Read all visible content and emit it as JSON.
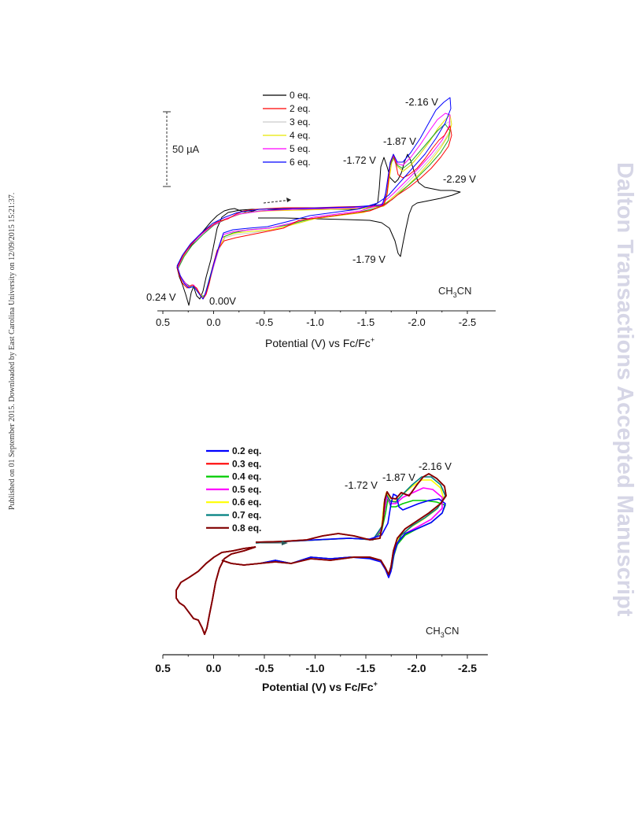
{
  "margin_left_text": "Published on 01 September 2015. Downloaded by East Carolina University on 12/09/2015 15:21:37.",
  "margin_right_text": "Dalton Transactions Accepted Manuscript",
  "chart_data": [
    {
      "type": "line",
      "xlabel": "Potential (V) vs Fc/Fc",
      "xlabel_sup": "+",
      "xlim": [
        0.5,
        -2.75
      ],
      "xticks": [
        0.5,
        0.0,
        -0.5,
        -1.0,
        -1.5,
        -2.0,
        -2.5
      ],
      "xtick_labels": [
        "0.5",
        "0.0",
        "-0.5",
        "-1.0",
        "-1.5",
        "-2.0",
        "-2.5"
      ],
      "scale_bar": "50 µA",
      "solvent": "CH",
      "solvent_sub": "3",
      "solvent_end": "CN",
      "legend_position": "top-center",
      "series": [
        {
          "name": "0 eq.",
          "color": "#000000"
        },
        {
          "name": "2 eq.",
          "color": "#ff0000"
        },
        {
          "name": "3 eq.",
          "color": "#c9c9c9"
        },
        {
          "name": "4 eq.",
          "color": "#e6e600"
        },
        {
          "name": "5 eq.",
          "color": "#ff00ff"
        },
        {
          "name": "6 eq.",
          "color": "#0000ff"
        }
      ],
      "annotations": [
        "-2.16 V",
        "-1.87 V",
        "-1.72 V",
        "-2.29 V",
        "-1.79 V",
        "0.24 V",
        "0.00V"
      ],
      "peak_potentials": [
        -2.16,
        -1.87,
        -1.72,
        -2.29,
        -1.79,
        0.24,
        0.0
      ]
    },
    {
      "type": "line",
      "xlabel": "Potential (V) vs Fc/Fc",
      "xlabel_sup": "+",
      "xlim": [
        0.5,
        -2.75
      ],
      "xticks": [
        0.5,
        0.0,
        -0.5,
        -1.0,
        -1.5,
        -2.0,
        -2.5
      ],
      "xtick_labels": [
        "0.5",
        "0.0",
        "-0.5",
        "-1.0",
        "-1.5",
        "-2.0",
        "-2.5"
      ],
      "solvent": "CH",
      "solvent_sub": "3",
      "solvent_end": "CN",
      "legend_position": "top-left",
      "series": [
        {
          "name": "0.2 eq.",
          "color": "#0000ff"
        },
        {
          "name": "0.3 eq.",
          "color": "#ff0000"
        },
        {
          "name": "0.4 eq.",
          "color": "#00cc00"
        },
        {
          "name": "0.5 eq.",
          "color": "#ff00ff"
        },
        {
          "name": "0.6 eq.",
          "color": "#ffff00"
        },
        {
          "name": "0.7 eq.",
          "color": "#008080"
        },
        {
          "name": "0.8 eq.",
          "color": "#800000"
        }
      ],
      "annotations": [
        "-1.72 V",
        "-1.87 V",
        "-2.16 V"
      ],
      "peak_potentials": [
        -1.72,
        -1.87,
        -2.16
      ]
    }
  ]
}
